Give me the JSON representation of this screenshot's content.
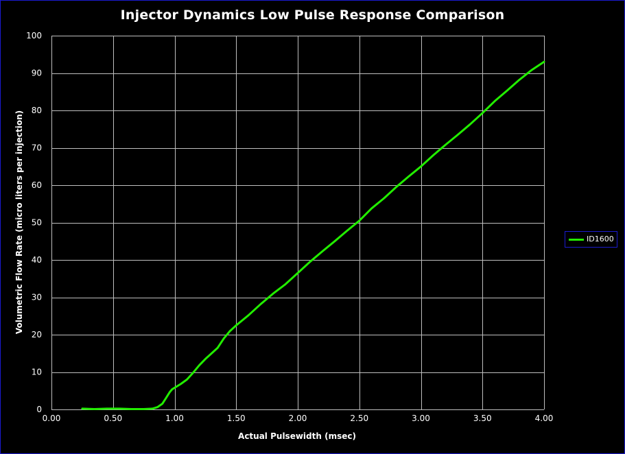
{
  "colors": {
    "background": "#000000",
    "grid": "#c0c0c0",
    "series": "#22ee00",
    "frame": "#1b1bd0",
    "text": "#ffffff"
  },
  "chart_data": {
    "type": "line",
    "title": "Injector Dynamics Low Pulse Response Comparison",
    "xlabel": "Actual Pulsewidth (msec)",
    "ylabel": "Volumetric Flow Rate (micro liters per injection)",
    "xlim": [
      0,
      4
    ],
    "ylim": [
      0,
      100
    ],
    "xticks": [
      "0.00",
      "0.50",
      "1.00",
      "1.50",
      "2.00",
      "2.50",
      "3.00",
      "3.50",
      "4.00"
    ],
    "yticks": [
      "0",
      "10",
      "20",
      "30",
      "40",
      "50",
      "60",
      "70",
      "80",
      "90",
      "100"
    ],
    "grid": true,
    "legend_position": "right",
    "series": [
      {
        "name": "ID1600",
        "x": [
          0.25,
          0.35,
          0.45,
          0.55,
          0.65,
          0.75,
          0.82,
          0.86,
          0.9,
          0.93,
          0.96,
          0.98,
          1.0,
          1.05,
          1.1,
          1.15,
          1.2,
          1.25,
          1.3,
          1.35,
          1.4,
          1.45,
          1.5,
          1.6,
          1.7,
          1.8,
          1.9,
          2.0,
          2.1,
          2.2,
          2.3,
          2.4,
          2.5,
          2.6,
          2.7,
          2.8,
          2.9,
          3.0,
          3.1,
          3.2,
          3.3,
          3.4,
          3.5,
          3.6,
          3.7,
          3.8,
          3.9,
          4.0
        ],
        "y": [
          0.2,
          0.1,
          0.2,
          0.2,
          0.1,
          0.1,
          0.2,
          0.6,
          1.5,
          3.0,
          4.6,
          5.4,
          5.8,
          6.8,
          8.0,
          9.8,
          11.8,
          13.5,
          15.0,
          16.5,
          19.0,
          21.0,
          22.5,
          25.2,
          28.2,
          31.0,
          33.5,
          36.5,
          39.5,
          42.3,
          45.0,
          47.8,
          50.5,
          53.8,
          56.5,
          59.5,
          62.3,
          65.0,
          68.0,
          70.8,
          73.5,
          76.3,
          79.3,
          82.5,
          85.3,
          88.2,
          90.8,
          93.0
        ]
      }
    ]
  }
}
